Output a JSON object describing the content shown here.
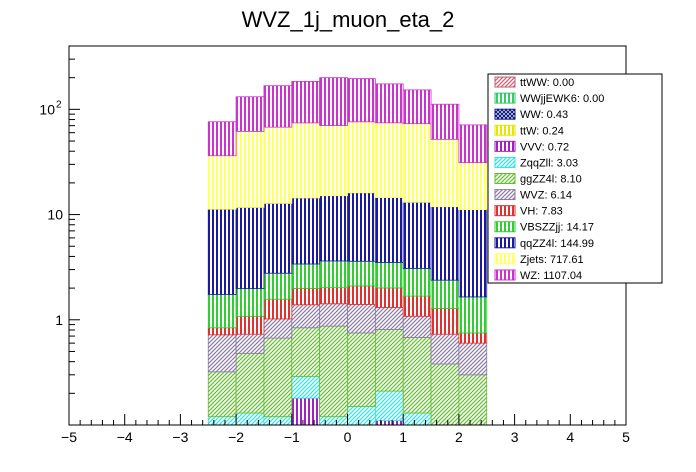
{
  "chart_data": {
    "type": "bar",
    "subtype": "stacked-histogram",
    "title": "WVZ_1j_muon_eta_2",
    "xlabel": "",
    "ylabel": "",
    "yscale": "log",
    "xlim": [
      -5,
      5
    ],
    "ylim": [
      0.1,
      400
    ],
    "x_ticks": [
      "−5",
      "−4",
      "−3",
      "−2",
      "−1",
      "0",
      "1",
      "2",
      "3",
      "4",
      "5"
    ],
    "y_ticks": [
      {
        "value": 1,
        "label": "1"
      },
      {
        "value": 10,
        "label": "10"
      },
      {
        "value": 100,
        "label": "10",
        "exponent": "2"
      }
    ],
    "bin_edges": [
      -2.5,
      -2.0,
      -1.5,
      -1.0,
      -0.5,
      0.0,
      0.5,
      1.0,
      1.5,
      2.0,
      2.5
    ],
    "series": [
      {
        "name": "ttWW",
        "color": "#c06070",
        "values": [
          0,
          0,
          0,
          0,
          0,
          0,
          0,
          0,
          0,
          0
        ]
      },
      {
        "name": "WWjjEWK6",
        "color": "#33cc66",
        "values": [
          0,
          0,
          0,
          0,
          0,
          0,
          0,
          0,
          0,
          0
        ]
      },
      {
        "name": "WW",
        "color": "#0a1a80",
        "values": [
          0,
          0,
          0,
          0,
          0,
          0,
          0,
          0,
          0,
          0
        ]
      },
      {
        "name": "ttW",
        "color": "#e6e600",
        "values": [
          0,
          0,
          0,
          0.04,
          0,
          0,
          0.03,
          0,
          0,
          0
        ]
      },
      {
        "name": "VVV",
        "color": "#a020c0",
        "values": [
          0,
          0.01,
          0,
          0.14,
          0,
          0.04,
          0.08,
          0.03,
          0,
          0
        ]
      },
      {
        "name": "ZqqZll",
        "color": "#33e0e0",
        "values": [
          0.12,
          0.12,
          0.12,
          0.11,
          0.12,
          0.11,
          0.1,
          0.1,
          0.08,
          0.1
        ]
      },
      {
        "name": "ggZZ4l",
        "color": "#66bb33",
        "values": [
          0.2,
          0.35,
          0.55,
          0.55,
          0.75,
          0.6,
          0.6,
          0.55,
          0.3,
          0.2
        ]
      },
      {
        "name": "WVZ",
        "color": "#8a7aa0",
        "values": [
          0.4,
          0.25,
          0.35,
          0.55,
          0.55,
          0.65,
          0.5,
          0.4,
          0.35,
          0.3
        ]
      },
      {
        "name": "VH",
        "color": "#e03030",
        "values": [
          0.12,
          0.35,
          0.55,
          0.6,
          0.6,
          0.7,
          0.7,
          0.6,
          0.55,
          0.15
        ]
      },
      {
        "name": "VBSZZjj",
        "color": "#33cc33",
        "values": [
          0.9,
          0.9,
          1.2,
          1.4,
          1.6,
          1.5,
          1.5,
          1.4,
          1.1,
          0.9
        ]
      },
      {
        "name": "qqZZ4l",
        "color": "#1a1aa0",
        "values": [
          9.5,
          9.7,
          10,
          11,
          11.5,
          12.5,
          11,
          10,
          9.5,
          9.5
        ]
      },
      {
        "name": "Zjets",
        "color": "#ffff66",
        "values": [
          25,
          50,
          55,
          60,
          55,
          60,
          60,
          60,
          40,
          20
        ]
      },
      {
        "name": "WZ",
        "color": "#cc33cc",
        "values": [
          40,
          70,
          100,
          110,
          130,
          120,
          100,
          80,
          60,
          40
        ]
      }
    ],
    "legend": {
      "position": "top-right",
      "entries": [
        {
          "label": "ttWW: 0.00",
          "color": "#c06070"
        },
        {
          "label": "WWjjEWK6: 0.00",
          "color": "#33cc66"
        },
        {
          "label": "WW: 0.43",
          "color": "#0a1a80"
        },
        {
          "label": "ttW: 0.24",
          "color": "#e6e600"
        },
        {
          "label": "VVV: 0.72",
          "color": "#a020c0"
        },
        {
          "label": "ZqqZll: 3.03",
          "color": "#33e0e0"
        },
        {
          "label": "ggZZ4l: 8.10",
          "color": "#66bb33"
        },
        {
          "label": "WVZ: 6.14",
          "color": "#8a7aa0"
        },
        {
          "label": "VH: 7.83",
          "color": "#e03030"
        },
        {
          "label": "VBSZZjj: 14.17",
          "color": "#33cc33"
        },
        {
          "label": "qqZZ4l: 144.99",
          "color": "#1a1aa0"
        },
        {
          "label": "Zjets: 717.61",
          "color": "#ffff66"
        },
        {
          "label": "WZ: 1107.04",
          "color": "#cc33cc"
        }
      ]
    },
    "grid": false
  }
}
